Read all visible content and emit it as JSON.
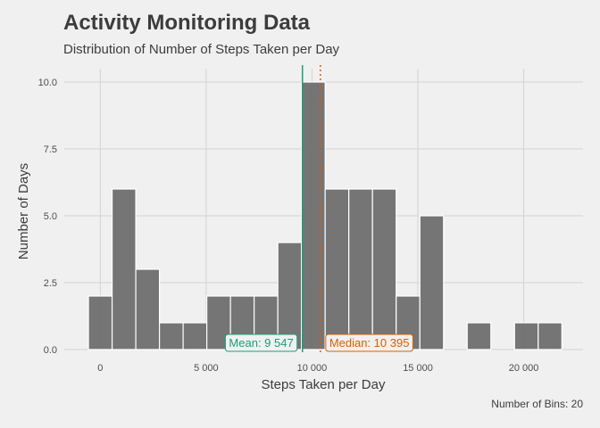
{
  "title": "Activity Monitoring Data",
  "subtitle": "Distribution of Number of Steps Taken per Day",
  "caption": "Number of Bins: 20",
  "colors": {
    "bar": "#6e6e6e",
    "mean": "#1b9e77",
    "median": "#d95f02",
    "grid": "#d2d2d2",
    "background": "#f0f0f0"
  },
  "chart_data": {
    "type": "bar",
    "xlabel": "Steps Taken per Day",
    "ylabel": "Number of Days",
    "xlim": [
      -1700,
      22800
    ],
    "ylim": [
      0,
      10.5
    ],
    "x_ticks": [
      0,
      5000,
      10000,
      15000,
      20000
    ],
    "x_tick_labels": [
      "0",
      "5 000",
      "10 000",
      "15 000",
      "20 000"
    ],
    "y_ticks": [
      0,
      2.5,
      5,
      7.5,
      10
    ],
    "y_tick_labels": [
      "0.0",
      "2.5",
      "5.0",
      "7.5",
      "10.0"
    ],
    "bins": [
      {
        "x0": -559,
        "x1": 559,
        "count": 2
      },
      {
        "x0": 559,
        "x1": 1677,
        "count": 6
      },
      {
        "x0": 1677,
        "x1": 2795,
        "count": 3
      },
      {
        "x0": 2795,
        "x1": 3913,
        "count": 1
      },
      {
        "x0": 3913,
        "x1": 5031,
        "count": 1
      },
      {
        "x0": 5031,
        "x1": 6149,
        "count": 2
      },
      {
        "x0": 6149,
        "x1": 7267,
        "count": 2
      },
      {
        "x0": 7267,
        "x1": 8385,
        "count": 2
      },
      {
        "x0": 8385,
        "x1": 9503,
        "count": 4
      },
      {
        "x0": 9503,
        "x1": 10621,
        "count": 10
      },
      {
        "x0": 10621,
        "x1": 11739,
        "count": 6
      },
      {
        "x0": 11739,
        "x1": 12857,
        "count": 6
      },
      {
        "x0": 12857,
        "x1": 13975,
        "count": 6
      },
      {
        "x0": 13975,
        "x1": 15093,
        "count": 2
      },
      {
        "x0": 15093,
        "x1": 16211,
        "count": 5
      },
      {
        "x0": 16211,
        "x1": 17329,
        "count": 0
      },
      {
        "x0": 17329,
        "x1": 18447,
        "count": 1
      },
      {
        "x0": 18447,
        "x1": 19565,
        "count": 0
      },
      {
        "x0": 19565,
        "x1": 20683,
        "count": 1
      },
      {
        "x0": 20683,
        "x1": 21801,
        "count": 1
      }
    ],
    "mean": 9547,
    "median": 10395,
    "mean_label": "Mean: 9 547",
    "median_label": "Median: 10 395"
  }
}
